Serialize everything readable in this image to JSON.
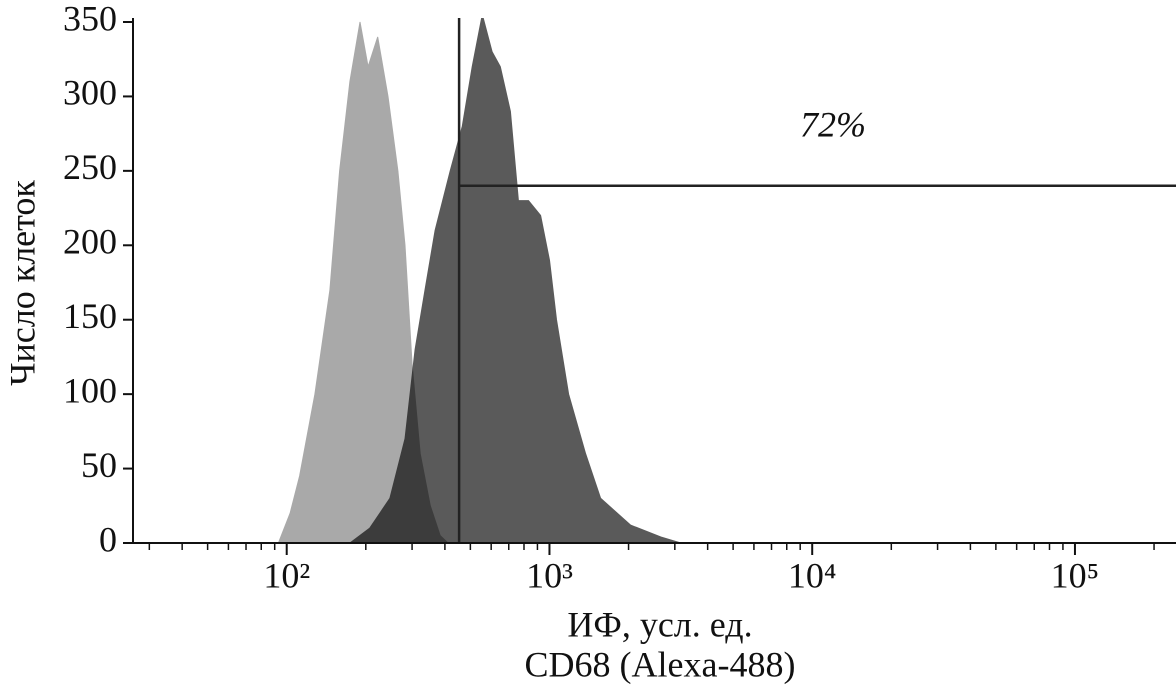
{
  "chart_data": {
    "type": "histogram",
    "xlabel": "ИФ, усл. ед.",
    "xlabel2": "CD68 (Alexa-488)",
    "ylabel": "Число клеток",
    "xscale": "log",
    "xlim": [
      26,
      230000
    ],
    "xticks": [
      {
        "value": 100,
        "label": "10²"
      },
      {
        "value": 1000,
        "label": "10³"
      },
      {
        "value": 10000,
        "label": "10⁴"
      },
      {
        "value": 100000,
        "label": "10⁵"
      }
    ],
    "ylim": [
      0,
      350
    ],
    "yticks": [
      0,
      50,
      100,
      150,
      200,
      250,
      300,
      350
    ],
    "series": [
      {
        "color": "#a9a9a9",
        "x": [
          93,
          103,
          112,
          128,
          146,
          159,
          174,
          190,
          204,
          222,
          243,
          265,
          282,
          300,
          322,
          352,
          384,
          411
        ],
        "values": [
          0,
          20,
          45,
          100,
          170,
          250,
          310,
          350,
          320,
          340,
          300,
          250,
          200,
          120,
          60,
          25,
          5,
          0
        ]
      },
      {
        "color": "#5a5a5a",
        "x": [
          174,
          207,
          247,
          282,
          308,
          336,
          367,
          419,
          466,
          508,
          555,
          605,
          650,
          710,
          762,
          832,
          925,
          1000,
          1064,
          1183,
          1372,
          1566,
          2037,
          2654,
          3162
        ],
        "values": [
          0,
          10,
          30,
          70,
          130,
          170,
          210,
          250,
          280,
          320,
          355,
          330,
          320,
          290,
          230,
          230,
          220,
          190,
          150,
          100,
          60,
          30,
          12,
          4,
          0
        ]
      }
    ],
    "gate": {
      "x": 453,
      "level": 240,
      "label": "72%"
    }
  }
}
